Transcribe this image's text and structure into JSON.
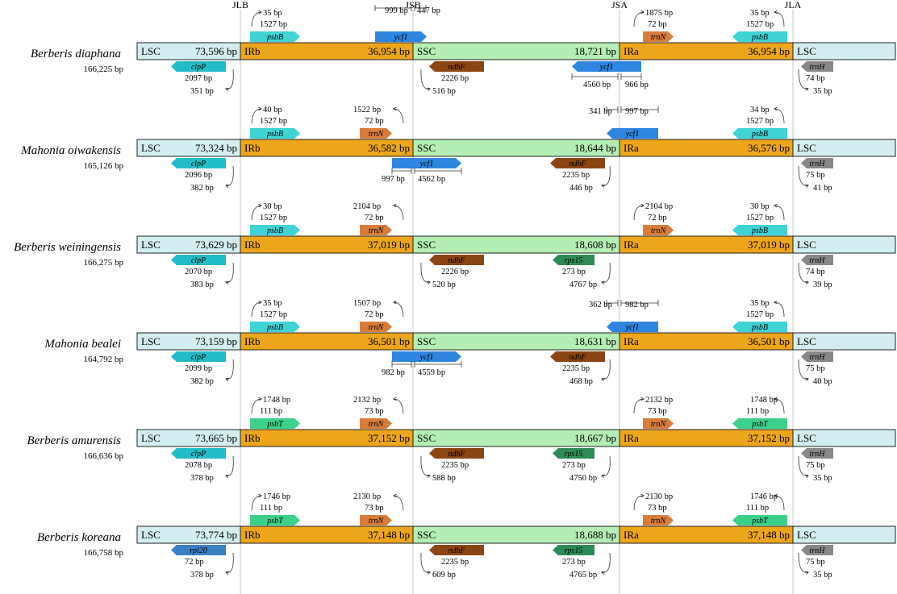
{
  "junctions": [
    "JLB",
    "JSB",
    "JSA",
    "JLA"
  ],
  "species": [
    {
      "name": "Berberis diaphana",
      "total": "166,225 bp",
      "regions": {
        "lsc": "LSC",
        "lsc_len": "73,596 bp",
        "irb": "IRb",
        "irb_len": "36,954 bp",
        "ssc": "SSC",
        "ssc_len": "18,721 bp",
        "ira": "IRa",
        "ira_len": "36,954 bp",
        "lsc2": "LSC"
      },
      "genes_top": [
        {
          "name": "psbB",
          "color": "#3fd3d6",
          "dir": "right",
          "anchor": "JLB"
        },
        {
          "name": "ycf1",
          "color": "#2e86e0",
          "dir": "right",
          "anchor": "JSB"
        },
        {
          "name": "trnN",
          "color": "#d97c3a",
          "dir": "right",
          "anchor": "JSA"
        },
        {
          "name": "psbB",
          "color": "#3fd3d6",
          "dir": "left",
          "anchor": "JLA"
        }
      ],
      "genes_bottom": [
        {
          "name": "clpP",
          "color": "#22bcc6",
          "dir": "left",
          "anchor": "JLB"
        },
        {
          "name": "ndhF",
          "color": "#8b4513",
          "dir": "left",
          "anchor": "JSB"
        },
        {
          "name": "ycf1",
          "color": "#2e86e0",
          "dir": "left",
          "anchor": "JSA"
        },
        {
          "name": "trnH",
          "color": "#888888",
          "dir": "left",
          "anchor": "JLA"
        }
      ],
      "labels": [
        "35 bp",
        "1527 bp",
        "999 bp",
        "447 bp",
        "1875 bp",
        "72 bp",
        "35 bp",
        "1527 bp",
        "2097 bp",
        "351 bp",
        "2226 bp",
        "516 bp",
        "4560 bp",
        "966 bp",
        "74 bp",
        "35 bp"
      ]
    },
    {
      "name": "Mahonia oiwakensis",
      "total": "165,126 bp",
      "regions": {
        "lsc": "LSC",
        "lsc_len": "73,324 bp",
        "irb": "IRb",
        "irb_len": "36,582 bp",
        "ssc": "SSC",
        "ssc_len": "18,644 bp",
        "ira": "IRa",
        "ira_len": "36,576 bp",
        "lsc2": "LSC"
      },
      "genes_top": [
        {
          "name": "psbB",
          "color": "#3fd3d6",
          "dir": "right",
          "anchor": "JLB"
        },
        {
          "name": "trnN",
          "color": "#d97c3a",
          "dir": "right",
          "anchor": "JSB"
        },
        {
          "name": "ycf1",
          "color": "#2e86e0",
          "dir": "left",
          "anchor": "JSA"
        },
        {
          "name": "psbB",
          "color": "#3fd3d6",
          "dir": "left",
          "anchor": "JLA"
        }
      ],
      "genes_bottom": [
        {
          "name": "clpP",
          "color": "#22bcc6",
          "dir": "left",
          "anchor": "JLB"
        },
        {
          "name": "ycf1",
          "color": "#2e86e0",
          "dir": "right",
          "anchor": "JSB"
        },
        {
          "name": "ndhF",
          "color": "#8b4513",
          "dir": "left",
          "anchor": "JSA"
        },
        {
          "name": "trnH",
          "color": "#888888",
          "dir": "left",
          "anchor": "JLA"
        }
      ],
      "labels": [
        "40 bp",
        "1527 bp",
        "1522 bp",
        "72 bp",
        "341 bp",
        "997 bp",
        "34 bp",
        "1527 bp",
        "2096 bp",
        "382 bp",
        "997 bp",
        "4562 bp",
        "2235 bp",
        "446 bp",
        "75 bp",
        "41 bp"
      ]
    },
    {
      "name": "Berberis weiningensis",
      "total": "166,275 bp",
      "regions": {
        "lsc": "LSC",
        "lsc_len": "73,629 bp",
        "irb": "IRb",
        "irb_len": "37,019 bp",
        "ssc": "SSC",
        "ssc_len": "18,608 bp",
        "ira": "IRa",
        "ira_len": "37,019 bp",
        "lsc2": "LSC"
      },
      "genes_top": [
        {
          "name": "psbB",
          "color": "#3fd3d6",
          "dir": "right",
          "anchor": "JLB"
        },
        {
          "name": "trnN",
          "color": "#d97c3a",
          "dir": "right",
          "anchor": "JSB"
        },
        {
          "name": "trnN",
          "color": "#d97c3a",
          "dir": "right",
          "anchor": "JSA"
        },
        {
          "name": "psbB",
          "color": "#3fd3d6",
          "dir": "left",
          "anchor": "JLA"
        }
      ],
      "genes_bottom": [
        {
          "name": "clpP",
          "color": "#22bcc6",
          "dir": "left",
          "anchor": "JLB"
        },
        {
          "name": "ndhF",
          "color": "#8b4513",
          "dir": "left",
          "anchor": "JSB"
        },
        {
          "name": "rps15",
          "color": "#2e8b57",
          "dir": "left",
          "anchor": "JSA"
        },
        {
          "name": "trnH",
          "color": "#888888",
          "dir": "left",
          "anchor": "JLA"
        }
      ],
      "labels": [
        "30 bp",
        "1527 bp",
        "2104 bp",
        "72 bp",
        "2104 bp",
        "72 bp",
        "30 bp",
        "1527 bp",
        "2070 bp",
        "383 bp",
        "2226 bp",
        "520 bp",
        "273 bp",
        "4767 bp",
        "74 bp",
        "39 bp"
      ]
    },
    {
      "name": "Mahonia bealei",
      "total": "164,792 bp",
      "regions": {
        "lsc": "LSC",
        "lsc_len": "73,159 bp",
        "irb": "IRb",
        "irb_len": "36,501 bp",
        "ssc": "SSC",
        "ssc_len": "18,631 bp",
        "ira": "IRa",
        "ira_len": "36,501 bp",
        "lsc2": "LSC"
      },
      "genes_top": [
        {
          "name": "psbB",
          "color": "#3fd3d6",
          "dir": "right",
          "anchor": "JLB"
        },
        {
          "name": "trnN",
          "color": "#d97c3a",
          "dir": "right",
          "anchor": "JSB"
        },
        {
          "name": "ycf1",
          "color": "#2e86e0",
          "dir": "left",
          "anchor": "JSA"
        },
        {
          "name": "psbB",
          "color": "#3fd3d6",
          "dir": "left",
          "anchor": "JLA"
        }
      ],
      "genes_bottom": [
        {
          "name": "clpP",
          "color": "#22bcc6",
          "dir": "left",
          "anchor": "JLB"
        },
        {
          "name": "ycf1",
          "color": "#2e86e0",
          "dir": "right",
          "anchor": "JSB"
        },
        {
          "name": "ndhF",
          "color": "#8b4513",
          "dir": "left",
          "anchor": "JSA"
        },
        {
          "name": "trnH",
          "color": "#888888",
          "dir": "left",
          "anchor": "JLA"
        }
      ],
      "labels": [
        "35 bp",
        "1527 bp",
        "1507 bp",
        "72 bp",
        "362 bp",
        "982 bp",
        "35 bp",
        "1527 bp",
        "2099 bp",
        "382 bp",
        "982 bp",
        "4559 bp",
        "2235 bp",
        "468 bp",
        "75 bp",
        "40 bp"
      ]
    },
    {
      "name": "Berberis amurensis",
      "total": "166,636 bp",
      "regions": {
        "lsc": "LSC",
        "lsc_len": "73,665 bp",
        "irb": "IRb",
        "irb_len": "37,152 bp",
        "ssc": "SSC",
        "ssc_len": "18,667 bp",
        "ira": "IRa",
        "ira_len": "37,152 bp",
        "lsc2": "LSC"
      },
      "genes_top": [
        {
          "name": "psbT",
          "color": "#3cd18a",
          "dir": "right",
          "anchor": "JLB"
        },
        {
          "name": "trnN",
          "color": "#d97c3a",
          "dir": "right",
          "anchor": "JSB"
        },
        {
          "name": "trnN",
          "color": "#d97c3a",
          "dir": "right",
          "anchor": "JSA"
        },
        {
          "name": "psbT",
          "color": "#3cd18a",
          "dir": "left",
          "anchor": "JLA"
        }
      ],
      "genes_bottom": [
        {
          "name": "clpP",
          "color": "#22bcc6",
          "dir": "left",
          "anchor": "JLB"
        },
        {
          "name": "ndhF",
          "color": "#8b4513",
          "dir": "left",
          "anchor": "JSB"
        },
        {
          "name": "rps15",
          "color": "#2e8b57",
          "dir": "left",
          "anchor": "JSA"
        },
        {
          "name": "trnH",
          "color": "#888888",
          "dir": "left",
          "anchor": "JLA"
        }
      ],
      "labels": [
        "1748 bp",
        "111 bp",
        "2132 bp",
        "73 bp",
        "2132 bp",
        "73 bp",
        "1748 bp",
        "111 bp",
        "2078 bp",
        "378 bp",
        "2235 bp",
        "588 bp",
        "273 bp",
        "4750 bp",
        "75 bp",
        "35 bp"
      ]
    },
    {
      "name": "Berberis koreana",
      "total": "166,758 bp",
      "regions": {
        "lsc": "LSC",
        "lsc_len": "73,774 bp",
        "irb": "IRb",
        "irb_len": "37,148 bp",
        "ssc": "SSC",
        "ssc_len": "18,688 bp",
        "ira": "IRa",
        "ira_len": "37,148 bp",
        "lsc2": "LSC"
      },
      "genes_top": [
        {
          "name": "psbT",
          "color": "#3cd18a",
          "dir": "right",
          "anchor": "JLB"
        },
        {
          "name": "trnN",
          "color": "#d97c3a",
          "dir": "right",
          "anchor": "JSB"
        },
        {
          "name": "trnN",
          "color": "#d97c3a",
          "dir": "right",
          "anchor": "JSA"
        },
        {
          "name": "psbT",
          "color": "#3cd18a",
          "dir": "left",
          "anchor": "JLA"
        }
      ],
      "genes_bottom": [
        {
          "name": "rpl20",
          "color": "#3b7fc4",
          "dir": "left",
          "anchor": "JLB"
        },
        {
          "name": "ndhF",
          "color": "#8b4513",
          "dir": "left",
          "anchor": "JSB"
        },
        {
          "name": "rps15",
          "color": "#2e8b57",
          "dir": "left",
          "anchor": "JSA"
        },
        {
          "name": "trnH",
          "color": "#888888",
          "dir": "left",
          "anchor": "JLA"
        }
      ],
      "labels": [
        "1746 bp",
        "111 bp",
        "2130 bp",
        "73 bp",
        "2130 bp",
        "73 bp",
        "1746 bp",
        "111 bp",
        "72 bp",
        "378 bp",
        "2235 bp",
        "609 bp",
        "273 bp",
        "4765 bp",
        "75 bp",
        "35 bp"
      ]
    }
  ],
  "colors": {
    "lsc": "#d2eef0",
    "ir": "#eda61c",
    "ssc": "#b4eeb4"
  }
}
